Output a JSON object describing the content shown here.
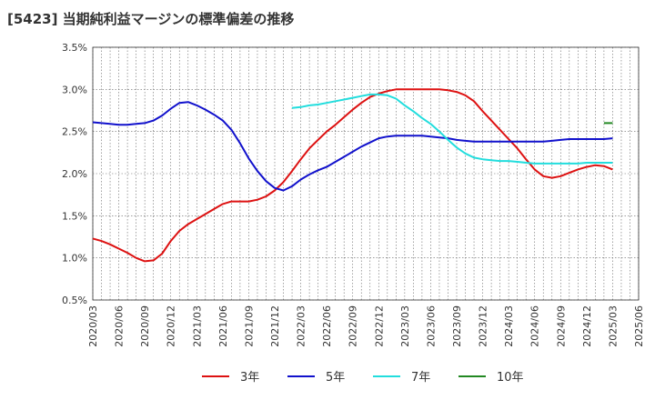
{
  "chart_data": {
    "type": "line",
    "title": "[5423]  当期純利益マージンの標準偏差の推移",
    "xlabel": "",
    "ylabel": "",
    "ylim": [
      0.5,
      3.5
    ],
    "xlim": [
      "2020/03",
      "2025/06"
    ],
    "grid": true,
    "legend_position": "bottom",
    "y_ticks": [
      "0.5%",
      "1.0%",
      "1.5%",
      "2.0%",
      "2.5%",
      "3.0%",
      "3.5%"
    ],
    "x_ticks": [
      "2020/03",
      "2020/06",
      "2020/09",
      "2020/12",
      "2021/03",
      "2021/06",
      "2021/09",
      "2021/12",
      "2022/03",
      "2022/06",
      "2022/09",
      "2022/12",
      "2023/03",
      "2023/06",
      "2023/09",
      "2023/12",
      "2024/03",
      "2024/06",
      "2024/09",
      "2024/12",
      "2025/03",
      "2025/06"
    ],
    "series": [
      {
        "name": "3年",
        "color": "#dd1111",
        "points": [
          [
            "2020/03",
            1.23
          ],
          [
            "2020/04",
            1.2
          ],
          [
            "2020/05",
            1.16
          ],
          [
            "2020/06",
            1.11
          ],
          [
            "2020/07",
            1.06
          ],
          [
            "2020/08",
            1.0
          ],
          [
            "2020/09",
            0.96
          ],
          [
            "2020/10",
            0.97
          ],
          [
            "2020/11",
            1.05
          ],
          [
            "2020/12",
            1.2
          ],
          [
            "2021/01",
            1.32
          ],
          [
            "2021/02",
            1.4
          ],
          [
            "2021/03",
            1.46
          ],
          [
            "2021/04",
            1.52
          ],
          [
            "2021/05",
            1.58
          ],
          [
            "2021/06",
            1.64
          ],
          [
            "2021/07",
            1.67
          ],
          [
            "2021/08",
            1.67
          ],
          [
            "2021/09",
            1.67
          ],
          [
            "2021/10",
            1.69
          ],
          [
            "2021/11",
            1.73
          ],
          [
            "2021/12",
            1.8
          ],
          [
            "2022/01",
            1.9
          ],
          [
            "2022/02",
            2.03
          ],
          [
            "2022/03",
            2.17
          ],
          [
            "2022/04",
            2.3
          ],
          [
            "2022/05",
            2.4
          ],
          [
            "2022/06",
            2.5
          ],
          [
            "2022/07",
            2.58
          ],
          [
            "2022/08",
            2.67
          ],
          [
            "2022/09",
            2.76
          ],
          [
            "2022/10",
            2.84
          ],
          [
            "2022/11",
            2.91
          ],
          [
            "2022/12",
            2.95
          ],
          [
            "2023/01",
            2.98
          ],
          [
            "2023/02",
            3.0
          ],
          [
            "2023/03",
            3.0
          ],
          [
            "2023/04",
            3.0
          ],
          [
            "2023/05",
            3.0
          ],
          [
            "2023/06",
            3.0
          ],
          [
            "2023/07",
            3.0
          ],
          [
            "2023/08",
            2.99
          ],
          [
            "2023/09",
            2.97
          ],
          [
            "2023/10",
            2.93
          ],
          [
            "2023/11",
            2.86
          ],
          [
            "2023/12",
            2.74
          ],
          [
            "2024/01",
            2.63
          ],
          [
            "2024/02",
            2.52
          ],
          [
            "2024/03",
            2.41
          ],
          [
            "2024/04",
            2.3
          ],
          [
            "2024/05",
            2.17
          ],
          [
            "2024/06",
            2.05
          ],
          [
            "2024/07",
            1.97
          ],
          [
            "2024/08",
            1.95
          ],
          [
            "2024/09",
            1.97
          ],
          [
            "2024/10",
            2.01
          ],
          [
            "2024/11",
            2.05
          ],
          [
            "2024/12",
            2.08
          ],
          [
            "2025/01",
            2.1
          ],
          [
            "2025/02",
            2.09
          ],
          [
            "2025/03",
            2.05
          ]
        ]
      },
      {
        "name": "5年",
        "color": "#1111cc",
        "points": [
          [
            "2020/03",
            2.61
          ],
          [
            "2020/04",
            2.6
          ],
          [
            "2020/05",
            2.59
          ],
          [
            "2020/06",
            2.58
          ],
          [
            "2020/07",
            2.58
          ],
          [
            "2020/08",
            2.59
          ],
          [
            "2020/09",
            2.6
          ],
          [
            "2020/10",
            2.63
          ],
          [
            "2020/11",
            2.69
          ],
          [
            "2020/12",
            2.77
          ],
          [
            "2021/01",
            2.84
          ],
          [
            "2021/02",
            2.85
          ],
          [
            "2021/03",
            2.81
          ],
          [
            "2021/04",
            2.76
          ],
          [
            "2021/05",
            2.7
          ],
          [
            "2021/06",
            2.63
          ],
          [
            "2021/07",
            2.52
          ],
          [
            "2021/08",
            2.36
          ],
          [
            "2021/09",
            2.18
          ],
          [
            "2021/10",
            2.03
          ],
          [
            "2021/11",
            1.91
          ],
          [
            "2021/12",
            1.83
          ],
          [
            "2022/01",
            1.8
          ],
          [
            "2022/02",
            1.85
          ],
          [
            "2022/03",
            1.93
          ],
          [
            "2022/04",
            1.99
          ],
          [
            "2022/05",
            2.04
          ],
          [
            "2022/06",
            2.08
          ],
          [
            "2022/07",
            2.14
          ],
          [
            "2022/08",
            2.2
          ],
          [
            "2022/09",
            2.26
          ],
          [
            "2022/10",
            2.32
          ],
          [
            "2022/11",
            2.37
          ],
          [
            "2022/12",
            2.42
          ],
          [
            "2023/01",
            2.44
          ],
          [
            "2023/02",
            2.45
          ],
          [
            "2023/03",
            2.45
          ],
          [
            "2023/04",
            2.45
          ],
          [
            "2023/05",
            2.45
          ],
          [
            "2023/06",
            2.44
          ],
          [
            "2023/07",
            2.43
          ],
          [
            "2023/08",
            2.42
          ],
          [
            "2023/09",
            2.4
          ],
          [
            "2023/10",
            2.39
          ],
          [
            "2023/11",
            2.38
          ],
          [
            "2023/12",
            2.38
          ],
          [
            "2024/01",
            2.38
          ],
          [
            "2024/02",
            2.38
          ],
          [
            "2024/03",
            2.38
          ],
          [
            "2024/04",
            2.38
          ],
          [
            "2024/05",
            2.38
          ],
          [
            "2024/06",
            2.38
          ],
          [
            "2024/07",
            2.38
          ],
          [
            "2024/08",
            2.39
          ],
          [
            "2024/09",
            2.4
          ],
          [
            "2024/10",
            2.41
          ],
          [
            "2024/11",
            2.41
          ],
          [
            "2024/12",
            2.41
          ],
          [
            "2025/01",
            2.41
          ],
          [
            "2025/02",
            2.41
          ],
          [
            "2025/03",
            2.42
          ]
        ]
      },
      {
        "name": "7年",
        "color": "#22dddd",
        "points": [
          [
            "2022/02",
            2.78
          ],
          [
            "2022/03",
            2.79
          ],
          [
            "2022/04",
            2.81
          ],
          [
            "2022/05",
            2.82
          ],
          [
            "2022/06",
            2.84
          ],
          [
            "2022/07",
            2.86
          ],
          [
            "2022/08",
            2.88
          ],
          [
            "2022/09",
            2.9
          ],
          [
            "2022/10",
            2.92
          ],
          [
            "2022/11",
            2.94
          ],
          [
            "2022/12",
            2.94
          ],
          [
            "2023/01",
            2.93
          ],
          [
            "2023/02",
            2.89
          ],
          [
            "2023/03",
            2.81
          ],
          [
            "2023/04",
            2.74
          ],
          [
            "2023/05",
            2.66
          ],
          [
            "2023/06",
            2.59
          ],
          [
            "2023/07",
            2.5
          ],
          [
            "2023/08",
            2.4
          ],
          [
            "2023/09",
            2.31
          ],
          [
            "2023/10",
            2.24
          ],
          [
            "2023/11",
            2.19
          ],
          [
            "2023/12",
            2.17
          ],
          [
            "2024/01",
            2.16
          ],
          [
            "2024/02",
            2.15
          ],
          [
            "2024/03",
            2.15
          ],
          [
            "2024/04",
            2.14
          ],
          [
            "2024/05",
            2.13
          ],
          [
            "2024/06",
            2.12
          ],
          [
            "2024/07",
            2.12
          ],
          [
            "2024/08",
            2.12
          ],
          [
            "2024/09",
            2.12
          ],
          [
            "2024/10",
            2.12
          ],
          [
            "2024/11",
            2.12
          ],
          [
            "2024/12",
            2.13
          ],
          [
            "2025/01",
            2.13
          ],
          [
            "2025/02",
            2.13
          ],
          [
            "2025/03",
            2.13
          ]
        ]
      },
      {
        "name": "10年",
        "color": "#228822",
        "points": [
          [
            "2025/02",
            2.6
          ],
          [
            "2025/03",
            2.6
          ]
        ]
      }
    ]
  }
}
